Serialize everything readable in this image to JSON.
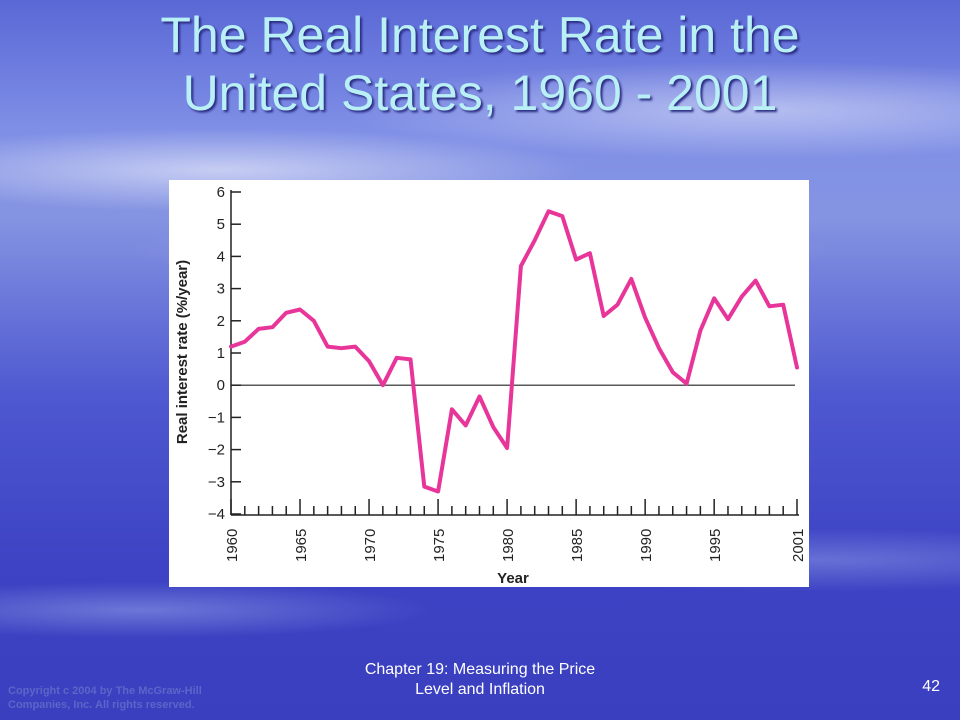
{
  "slide": {
    "title_line1": "The Real Interest Rate in the",
    "title_line2": "United States, 1960 - 2001"
  },
  "footer": {
    "copyright_line1": "Copyright c 2004 by The McGraw-Hill",
    "copyright_line2": "Companies, Inc. All rights reserved.",
    "chapter_line1": "Chapter 19: Measuring the Price",
    "chapter_line2": "Level and Inflation",
    "page_number": "42"
  },
  "colors": {
    "series": "#e8359a",
    "title": "#b8f0f5"
  },
  "chart_data": {
    "type": "line",
    "xlabel": "Year",
    "ylabel": "Real interest rate (%/year)",
    "ylim": [
      -4,
      6
    ],
    "xlim": [
      1960,
      2001
    ],
    "yticks": [
      6,
      5,
      4,
      3,
      2,
      1,
      0,
      -1,
      -2,
      -3,
      -4
    ],
    "ytick_labels": [
      "6",
      "5",
      "4",
      "3",
      "2",
      "1",
      "0",
      "−1",
      "−2",
      "−3",
      "−4"
    ],
    "xtick_labels": [
      "1960",
      "1965",
      "1970",
      "1975",
      "1980",
      "1985",
      "1990",
      "1995",
      "2001"
    ],
    "xtick_values": [
      1960,
      1965,
      1970,
      1975,
      1980,
      1985,
      1990,
      1995,
      2001
    ],
    "grid": false,
    "series": [
      {
        "x": [
          1960,
          1961,
          1962,
          1963,
          1964,
          1965,
          1966,
          1967,
          1968,
          1969,
          1970,
          1971,
          1972,
          1973,
          1974,
          1975,
          1976,
          1977,
          1978,
          1979,
          1980,
          1981,
          1982,
          1983,
          1984,
          1985,
          1986,
          1987,
          1988,
          1989,
          1990,
          1991,
          1992,
          1993,
          1994,
          1995,
          1996,
          1997,
          1998,
          1999,
          2000,
          2001
        ],
        "values": [
          1.2,
          1.35,
          1.75,
          1.8,
          2.25,
          2.35,
          2.0,
          1.2,
          1.15,
          1.2,
          0.75,
          0.0,
          0.85,
          0.8,
          -3.15,
          -3.3,
          -0.75,
          -1.25,
          -0.35,
          -1.3,
          -1.95,
          3.7,
          4.5,
          5.4,
          5.25,
          3.9,
          4.1,
          2.15,
          2.5,
          3.3,
          2.1,
          1.15,
          0.4,
          0.05,
          1.7,
          2.7,
          2.05,
          2.75,
          3.25,
          2.45,
          2.5,
          0.55
        ]
      }
    ]
  }
}
